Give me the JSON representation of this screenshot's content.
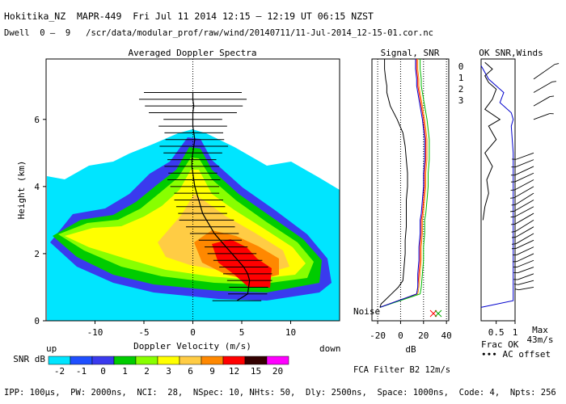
{
  "header": {
    "line1": "Hokitika_NZ  MAPR-449  Fri Jul 11 2014 12:15 — 12:19 UT 06:15 NZST",
    "line2": "Dwell  0 —  9   /scr/data/modular_prof/raw/wind/20140711/11-Jul-2014_12-15-01.cor.nc"
  },
  "footer": {
    "params": "IPP: 100μs,  PW: 2000ns,  NCI:  28,  NSpec: 10, NHts: 50,  Dly: 2500ns,  Space: 1000ns,  Code: 4,  Npts: 256"
  },
  "colors": {
    "snr_levels": [
      "#00e5ff",
      "#1f4fff",
      "#3a3aee",
      "#00cc00",
      "#88ff00",
      "#ffff00",
      "#ffcc44",
      "#ff8800",
      "#ff0000",
      "#330000",
      "#ff00ff"
    ],
    "channel": [
      "#ff0000",
      "#ff9900",
      "#00bb00",
      "#0000cc"
    ]
  },
  "chart_data": [
    {
      "type": "heatmap",
      "title": "Averaged Doppler Spectra",
      "xlabel": "Doppler Velocity (m/s)",
      "ylabel": "Height (km)",
      "xlim": [
        -15,
        15
      ],
      "ylim": [
        0,
        7.8
      ],
      "x_ticks": [
        -10,
        -5,
        0,
        5,
        10
      ],
      "y_ticks": [
        0,
        2,
        4,
        6
      ],
      "left_corner_label": "up",
      "right_corner_label": "down",
      "colorbar": {
        "label": "SNR dB",
        "ticks": [
          "-2",
          "-1",
          "0",
          "1",
          "2",
          "3",
          "6",
          "9",
          "12",
          "15",
          "20"
        ]
      },
      "mean_velocity_profile": {
        "heights_km": [
          0.6,
          0.8,
          1.0,
          1.2,
          1.4,
          1.6,
          1.8,
          2.0,
          2.2,
          2.4,
          2.6,
          2.8,
          3.0,
          3.2,
          3.4,
          3.6,
          3.8,
          4.0,
          4.2,
          4.4,
          4.6,
          4.8,
          5.0,
          5.2,
          5.4,
          5.6,
          5.8,
          6.0,
          6.2,
          6.4,
          6.6,
          6.8
        ],
        "velocity_ms": [
          4.5,
          5.6,
          5.7,
          5.8,
          5.6,
          5.2,
          4.6,
          4.0,
          3.4,
          2.8,
          2.2,
          1.8,
          1.4,
          1.0,
          0.8,
          0.6,
          0.4,
          0.2,
          0.1,
          0.0,
          -0.1,
          -0.1,
          0.0,
          0.1,
          0.2,
          0.1,
          0.0,
          0.0,
          0.0,
          0.1,
          0.0,
          0.0
        ],
        "spectral_width_ms": [
          2.5,
          2.0,
          2.0,
          2.3,
          2.5,
          2.5,
          2.5,
          2.5,
          2.2,
          2.2,
          2.5,
          2.5,
          2.8,
          2.5,
          2.5,
          2.5,
          2.3,
          2.5,
          2.7,
          2.5,
          2.8,
          2.5,
          3.0,
          3.5,
          3.0,
          3.0,
          3.5,
          3.0,
          4.5,
          5.0,
          5.5,
          5.0
        ]
      }
    },
    {
      "type": "line",
      "title": "Signal, SNR",
      "xlabel": "dB",
      "xlim": [
        -25,
        42
      ],
      "ylim": [
        0,
        7.8
      ],
      "x_ticks": [
        -20,
        0,
        20,
        40
      ],
      "annotation": "Noise",
      "series": [
        {
          "name": "0",
          "x": [
            -18,
            14,
            15,
            16,
            17,
            17,
            18,
            18,
            19,
            20,
            21,
            21,
            22,
            22,
            20,
            17,
            15,
            15,
            14,
            14
          ],
          "y": [
            0.4,
            0.8,
            1.0,
            1.4,
            1.8,
            2.2,
            2.6,
            3.0,
            3.2,
            3.6,
            4.0,
            4.4,
            4.8,
            5.4,
            6.0,
            6.6,
            7.0,
            7.2,
            7.5,
            7.8
          ]
        },
        {
          "name": "1",
          "x": [
            -18,
            15,
            16,
            17,
            18,
            18,
            19,
            19,
            20,
            21,
            22,
            22,
            23,
            23,
            21,
            18,
            16,
            16,
            15,
            15
          ],
          "y": [
            0.4,
            0.8,
            1.0,
            1.4,
            1.8,
            2.2,
            2.6,
            3.0,
            3.2,
            3.6,
            4.0,
            4.4,
            4.8,
            5.4,
            6.0,
            6.6,
            7.0,
            7.2,
            7.5,
            7.8
          ]
        },
        {
          "name": "2",
          "x": [
            -18,
            17,
            18,
            19,
            20,
            20,
            21,
            21,
            22,
            23,
            24,
            24,
            25,
            25,
            23,
            20,
            18,
            18,
            17,
            17
          ],
          "y": [
            0.4,
            0.8,
            1.0,
            1.4,
            1.8,
            2.2,
            2.6,
            3.0,
            3.2,
            3.6,
            4.0,
            4.4,
            4.8,
            5.4,
            6.0,
            6.6,
            7.0,
            7.2,
            7.5,
            7.8
          ]
        },
        {
          "name": "3",
          "x": [
            -18,
            14,
            15,
            15,
            16,
            16,
            17,
            17,
            18,
            19,
            20,
            20,
            21,
            21,
            19,
            16,
            14,
            14,
            13,
            13
          ],
          "y": [
            0.4,
            0.8,
            1.0,
            1.4,
            1.8,
            2.2,
            2.6,
            3.0,
            3.2,
            3.6,
            4.0,
            4.4,
            4.8,
            5.4,
            6.0,
            6.6,
            7.0,
            7.2,
            7.5,
            7.8
          ]
        },
        {
          "x": [
            -18,
            -17,
            -14,
            -8,
            -2,
            2,
            3,
            4,
            4,
            5,
            5,
            5,
            6,
            6,
            5,
            4,
            2,
            -3,
            -9,
            -12,
            -12,
            -13,
            -14,
            -14
          ],
          "y": [
            0.4,
            0.5,
            0.6,
            0.8,
            1.0,
            1.2,
            1.6,
            2.0,
            2.4,
            2.8,
            3.2,
            3.6,
            4.0,
            4.4,
            4.8,
            5.2,
            5.6,
            6.0,
            6.4,
            6.8,
            7.0,
            7.2,
            7.5,
            7.8
          ]
        }
      ]
    },
    {
      "type": "line",
      "title": "OK SNR,Winds",
      "xlabel": "Frac OK",
      "legend_note": "∙∙∙ AC offset",
      "xlim": [
        0.1,
        1.0
      ],
      "ylim": [
        0,
        7.8
      ],
      "x_ticks": [
        "0.5",
        "1"
      ],
      "wind_scale_label": "Max\n43m/s",
      "series": [
        {
          "x": [
            0.1,
            0.95,
            0.95,
            0.95,
            0.95,
            0.95,
            0.95,
            0.9,
            0.95,
            0.9,
            0.6,
            0.7,
            0.5,
            0.3,
            0.2,
            0.1
          ],
          "y": [
            0.4,
            0.6,
            1.0,
            2.0,
            3.0,
            4.0,
            5.0,
            5.8,
            6.0,
            6.2,
            6.5,
            6.8,
            7.0,
            7.2,
            7.4,
            7.6
          ]
        },
        {
          "x": [
            0.15,
            0.2,
            0.3,
            0.25,
            0.4,
            0.2,
            0.5,
            0.3,
            0.6,
            0.2,
            0.4,
            0.5,
            0.3,
            0.2,
            0.4,
            0.3,
            0.2
          ],
          "y": [
            3.0,
            3.4,
            3.8,
            4.2,
            4.6,
            5.0,
            5.4,
            5.8,
            6.0,
            6.3,
            6.6,
            6.9,
            7.1,
            7.3,
            7.5,
            7.6,
            7.7
          ]
        }
      ],
      "wind_barbs": {
        "heights_km": [
          1.0,
          1.2,
          1.4,
          1.6,
          1.8,
          2.0,
          2.2,
          2.4,
          2.6,
          2.8,
          3.0,
          3.2,
          3.4,
          3.6,
          3.8,
          4.0,
          4.2,
          4.4,
          4.6,
          4.8,
          5.0,
          6.0,
          6.4,
          6.8,
          7.2
        ],
        "speed_ms": [
          8,
          9,
          10,
          10,
          11,
          12,
          12,
          13,
          14,
          14,
          15,
          15,
          15,
          16,
          15,
          16,
          15,
          14,
          14,
          13,
          12,
          10,
          12,
          15,
          20
        ],
        "direction_deg": [
          260,
          255,
          250,
          250,
          248,
          245,
          245,
          245,
          240,
          240,
          238,
          240,
          242,
          240,
          238,
          240,
          242,
          245,
          245,
          248,
          250,
          70,
          60,
          60,
          55
        ]
      }
    }
  ]
}
